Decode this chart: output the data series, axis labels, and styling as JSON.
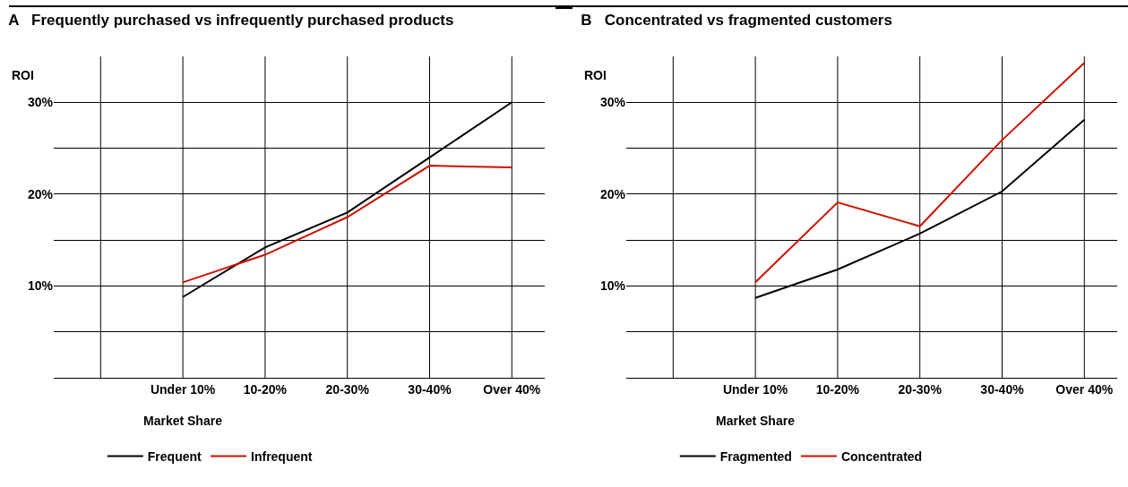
{
  "chart_data": [
    {
      "type": "line",
      "title": "A   Frequently purchased vs infrequently purchased products",
      "ylabel": "ROI",
      "xlabel": "Market Share",
      "categories": [
        "Under 10%",
        "10-20%",
        "20-30%",
        "30-40%",
        "Over 40%"
      ],
      "series": [
        {
          "name": "Frequent",
          "color": "#000000",
          "values": [
            8.8,
            14.2,
            18.0,
            24.0,
            30.0
          ]
        },
        {
          "name": "Infrequent",
          "color": "#cc1100",
          "values": [
            10.4,
            13.4,
            17.5,
            23.1,
            22.9
          ]
        }
      ],
      "ylim": [
        0,
        35
      ],
      "yticks": [
        {
          "value": 0,
          "label": null
        },
        {
          "value": 5,
          "label": null
        },
        {
          "value": 10,
          "label": "10%"
        },
        {
          "value": 15,
          "label": null
        },
        {
          "value": 20,
          "label": "20%"
        },
        {
          "value": 25,
          "label": null
        },
        {
          "value": 30,
          "label": "30%"
        }
      ],
      "grid": true,
      "legend": "bottom",
      "marker": "none",
      "line_style": "solid"
    },
    {
      "type": "line",
      "title": "B   Concentrated vs fragmented customers",
      "ylabel": "ROI",
      "xlabel": "Market Share",
      "categories": [
        "Under 10%",
        "10-20%",
        "20-30%",
        "30-40%",
        "Over 40%"
      ],
      "series": [
        {
          "name": "Fragmented",
          "color": "#000000",
          "values": [
            8.7,
            11.8,
            15.7,
            20.3,
            28.1
          ]
        },
        {
          "name": "Concentrated",
          "color": "#cc1100",
          "values": [
            10.4,
            19.1,
            16.5,
            25.9,
            34.3
          ]
        }
      ],
      "ylim": [
        0,
        35
      ],
      "yticks": [
        {
          "value": 0,
          "label": null
        },
        {
          "value": 5,
          "label": null
        },
        {
          "value": 10,
          "label": "10%"
        },
        {
          "value": 15,
          "label": null
        },
        {
          "value": 20,
          "label": "20%"
        },
        {
          "value": 25,
          "label": null
        },
        {
          "value": 30,
          "label": "30%"
        }
      ],
      "grid": true,
      "legend": "bottom",
      "marker": "none",
      "line_style": "solid"
    }
  ]
}
